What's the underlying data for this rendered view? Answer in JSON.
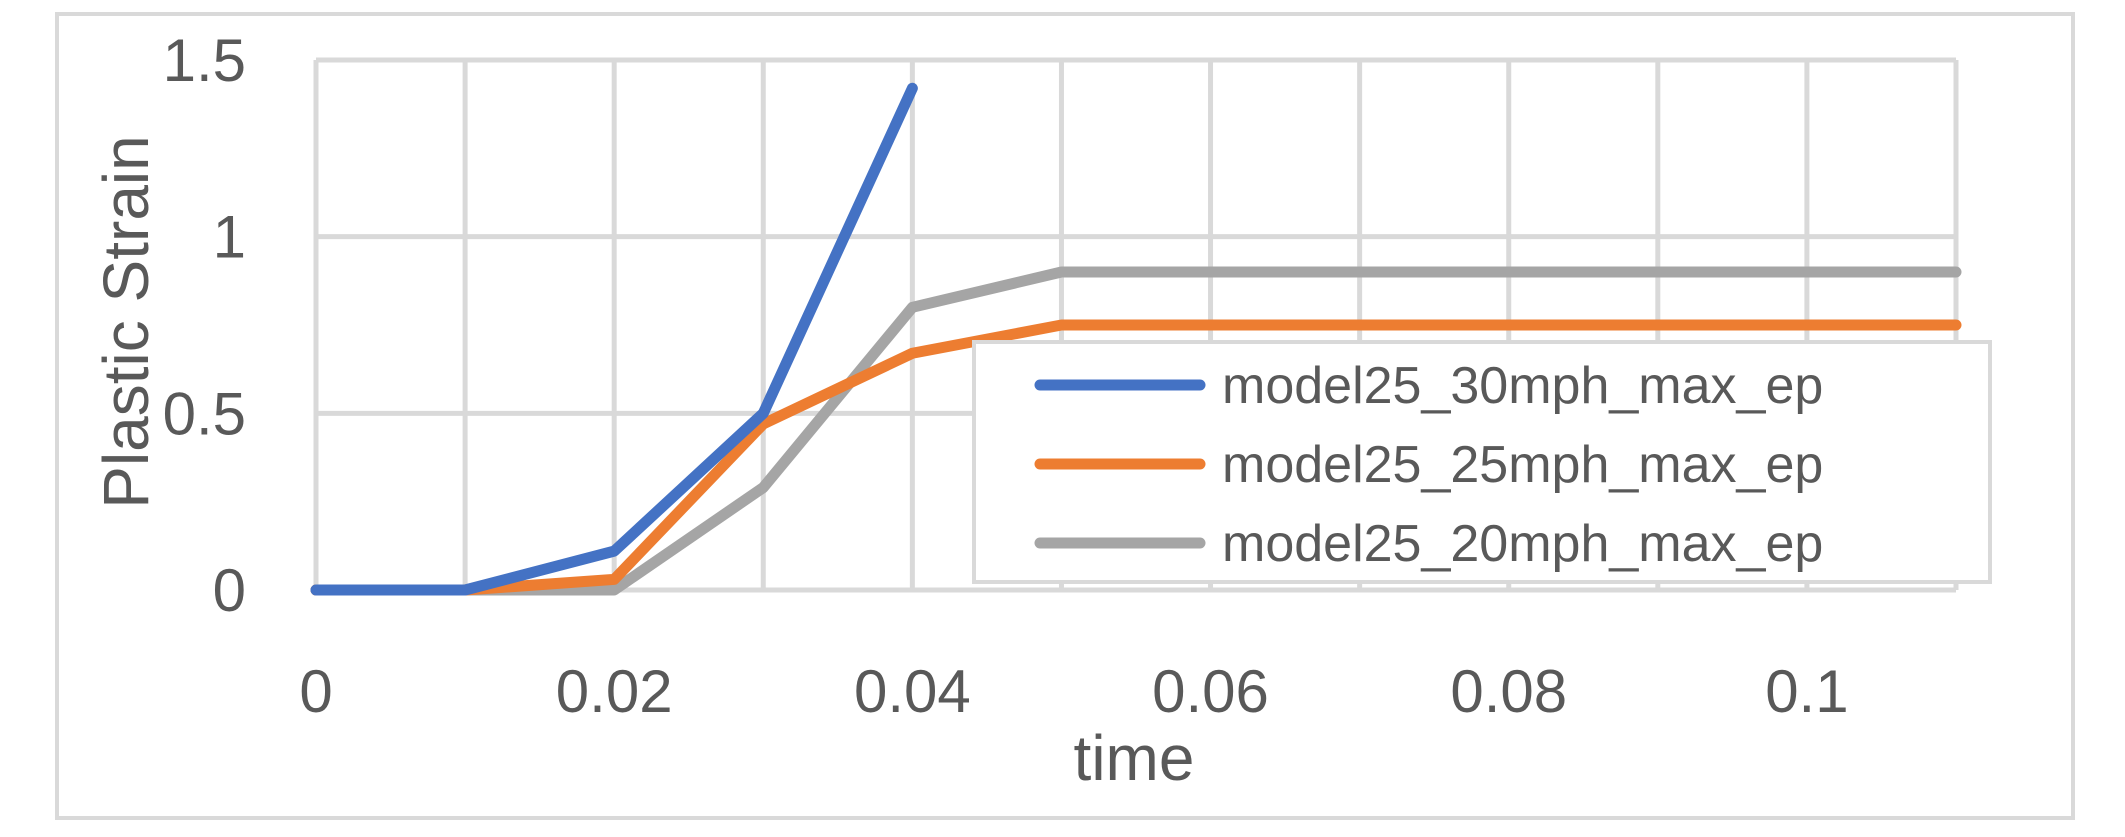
{
  "chart_data": {
    "type": "line",
    "xlabel": "time",
    "ylabel": "Plastic Strain",
    "xlim": [
      0,
      0.11
    ],
    "ylim": [
      0,
      1.5
    ],
    "x_ticks": [
      "0",
      "0.02",
      "0.04",
      "0.06",
      "0.08",
      "0.1"
    ],
    "x_tick_values": [
      0,
      0.02,
      0.04,
      0.06,
      0.08,
      0.1
    ],
    "y_ticks": [
      "0",
      "0.5",
      "1",
      "1.5"
    ],
    "y_tick_values": [
      0,
      0.5,
      1,
      1.5
    ],
    "x_grid_values": [
      0,
      0.01,
      0.02,
      0.03,
      0.04,
      0.05,
      0.06,
      0.07,
      0.08,
      0.09,
      0.1,
      0.11
    ],
    "grid": true,
    "legend_position": "right",
    "series": [
      {
        "name": "model25_30mph_max_ep",
        "color": "#4472c4",
        "points": [
          [
            0,
            0
          ],
          [
            0.01,
            0
          ],
          [
            0.02,
            0.11
          ],
          [
            0.03,
            0.5
          ],
          [
            0.04,
            1.42
          ]
        ]
      },
      {
        "name": "model25_25mph_max_ep",
        "color": "#ed7d31",
        "points": [
          [
            0,
            0
          ],
          [
            0.01,
            0
          ],
          [
            0.02,
            0.03
          ],
          [
            0.03,
            0.47
          ],
          [
            0.04,
            0.67
          ],
          [
            0.05,
            0.75
          ],
          [
            0.06,
            0.75
          ],
          [
            0.07,
            0.75
          ],
          [
            0.08,
            0.75
          ],
          [
            0.09,
            0.75
          ],
          [
            0.1,
            0.75
          ],
          [
            0.11,
            0.75
          ]
        ]
      },
      {
        "name": "model25_20mph_max_ep",
        "color": "#a5a5a5",
        "points": [
          [
            0,
            0
          ],
          [
            0.01,
            0
          ],
          [
            0.02,
            0
          ],
          [
            0.03,
            0.29
          ],
          [
            0.04,
            0.8
          ],
          [
            0.05,
            0.9
          ],
          [
            0.06,
            0.9
          ],
          [
            0.07,
            0.9
          ],
          [
            0.08,
            0.9
          ],
          [
            0.09,
            0.9
          ],
          [
            0.1,
            0.9
          ],
          [
            0.11,
            0.9
          ]
        ]
      }
    ],
    "gridline_color": "#d9d9d9",
    "text_color": "#595959"
  }
}
